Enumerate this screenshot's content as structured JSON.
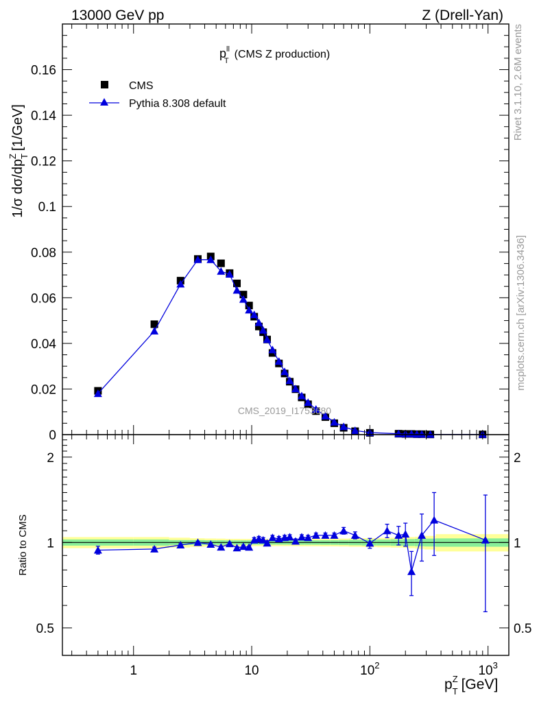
{
  "header": {
    "left": "13000 GeV pp",
    "right": "Z (Drell-Yan)"
  },
  "side_labels": {
    "rivet": "Rivet 3.1.10,  2.6M events",
    "mcplots": "mcplots.cern.ch [arXiv:1306.3436]"
  },
  "watermark": "CMS_2019_I1753680",
  "colors": {
    "data": "#000000",
    "mc": "#0000dd",
    "band_outer": "#ffff99",
    "band_inner": "#88ee99",
    "ref_line": "#00aa00"
  },
  "chart_data": [
    {
      "type": "scatter",
      "title_main": "p",
      "title_sup": "ll",
      "title_sub": "T",
      "title_rest": "(CMS Z production)",
      "ylabel": "1/σ dσ/dp T Z [1/GeV]",
      "ylabel_parts": {
        "a": "1/σ dσ/dp",
        "sup": "Z",
        "sub": "T",
        "b": "[1/GeV]"
      },
      "xscale": "log",
      "xlim": [
        0.25,
        1500
      ],
      "ylim": [
        0,
        0.18
      ],
      "yticks": [
        0.02,
        0.04,
        0.06,
        0.08,
        0.1,
        0.12,
        0.14,
        0.16
      ],
      "ytick_labels": [
        "0.02",
        "0.04",
        "0.06",
        "0.08",
        "0.1",
        "0.12",
        "0.14",
        "0.16"
      ],
      "legend_position": "top-left",
      "series": [
        {
          "name": "CMS",
          "marker": "square",
          "x": [
            0.5,
            1.5,
            2.5,
            3.5,
            4.5,
            5.5,
            6.5,
            7.5,
            8.5,
            9.5,
            10.5,
            11.5,
            12.5,
            13.5,
            15,
            17,
            19,
            21,
            23.5,
            26.5,
            30,
            35,
            42,
            50,
            60,
            75,
            100,
            175,
            200,
            225,
            250,
            275,
            325,
            900
          ],
          "y": [
            0.0192,
            0.0484,
            0.0675,
            0.077,
            0.0781,
            0.0751,
            0.0708,
            0.0663,
            0.0614,
            0.0566,
            0.0517,
            0.0474,
            0.0449,
            0.0417,
            0.0358,
            0.0312,
            0.0268,
            0.0232,
            0.0199,
            0.0163,
            0.0133,
            0.0103,
            0.0077,
            0.005,
            0.003,
            0.0015,
            0.0008,
            0.0004,
            0.0003,
            0.0003,
            0.0002,
            0.0002,
            0.0001,
            0.0001
          ]
        },
        {
          "name": "Pythia 8.308 default",
          "marker": "triangle",
          "x": [
            0.5,
            1.5,
            2.5,
            3.5,
            4.5,
            5.5,
            6.5,
            7.5,
            8.5,
            9.5,
            10.5,
            11.5,
            12.5,
            13.5,
            15,
            17,
            19,
            21,
            23.5,
            26.5,
            30,
            35,
            42,
            50,
            60,
            75,
            100,
            175,
            200,
            225,
            250,
            275,
            325,
            900
          ],
          "y": [
            0.018,
            0.0454,
            0.066,
            0.0767,
            0.0767,
            0.0716,
            0.0703,
            0.0633,
            0.0593,
            0.0546,
            0.0526,
            0.0491,
            0.0458,
            0.0417,
            0.0372,
            0.0321,
            0.0276,
            0.0237,
            0.0201,
            0.017,
            0.0141,
            0.0111,
            0.0082,
            0.0055,
            0.0035,
            0.0018,
            0.0009,
            0.0004,
            0.0003,
            0.0003,
            0.0002,
            0.0002,
            0.0001,
            0.0001
          ]
        }
      ]
    },
    {
      "type": "line",
      "ylabel": "Ratio to CMS",
      "xlabel_main": "p",
      "xlabel_sup": "Z",
      "xlabel_sub": "T",
      "xlabel_rest": "[GeV]",
      "xscale": "log",
      "yscale": "log",
      "xlim": [
        0.25,
        1500
      ],
      "ylim": [
        0.4,
        2.4
      ],
      "yticks": [
        0.5,
        1,
        2
      ],
      "ytick_labels": [
        "0.5",
        "1",
        "2"
      ],
      "xticks": [
        1,
        10,
        100,
        1000
      ],
      "xtick_labels": [
        {
          "base": "1",
          "exp": ""
        },
        {
          "base": "10",
          "exp": ""
        },
        {
          "base": "10",
          "exp": "2"
        },
        {
          "base": "10",
          "exp": "3"
        }
      ],
      "band_edges": [
        0.25,
        1,
        2,
        3,
        4,
        5,
        6,
        7,
        8,
        9,
        10,
        11,
        12,
        13,
        14,
        16,
        18,
        20,
        22,
        25,
        28,
        32,
        38,
        46,
        54,
        66,
        85,
        115,
        150,
        190,
        210,
        240,
        260,
        290,
        360,
        1500
      ],
      "band_inner_halfwidth": [
        0.025,
        0.025,
        0.02,
        0.02,
        0.018,
        0.018,
        0.017,
        0.017,
        0.017,
        0.017,
        0.017,
        0.017,
        0.017,
        0.017,
        0.017,
        0.017,
        0.017,
        0.017,
        0.017,
        0.018,
        0.018,
        0.018,
        0.019,
        0.019,
        0.02,
        0.022,
        0.024,
        0.024,
        0.026,
        0.028,
        0.028,
        0.03,
        0.03,
        0.032,
        0.034
      ],
      "band_outer_halfwidth": [
        0.045,
        0.045,
        0.04,
        0.035,
        0.033,
        0.032,
        0.03,
        0.03,
        0.029,
        0.029,
        0.029,
        0.029,
        0.029,
        0.029,
        0.029,
        0.029,
        0.029,
        0.029,
        0.029,
        0.03,
        0.03,
        0.03,
        0.031,
        0.031,
        0.032,
        0.034,
        0.036,
        0.038,
        0.04,
        0.042,
        0.045,
        0.048,
        0.05,
        0.055,
        0.07
      ],
      "series": [
        {
          "name": "Pythia 8.308 default",
          "x": [
            0.5,
            1.5,
            2.5,
            3.5,
            4.5,
            5.5,
            6.5,
            7.5,
            8.5,
            9.5,
            10.5,
            11.5,
            12.5,
            13.5,
            15,
            17,
            19,
            21,
            23.5,
            26.5,
            30,
            35,
            42,
            50,
            60,
            75,
            100,
            140,
            175,
            200,
            225,
            275,
            350,
            950
          ],
          "y": [
            0.94,
            0.948,
            0.98,
            1.0,
            0.985,
            0.963,
            0.99,
            0.957,
            0.968,
            0.962,
            1.02,
            1.03,
            1.02,
            0.995,
            1.04,
            1.03,
            1.04,
            1.045,
            1.01,
            1.045,
            1.04,
            1.06,
            1.06,
            1.06,
            1.1,
            1.06,
            0.994,
            1.1,
            1.06,
            1.07,
            0.79,
            1.06,
            1.2,
            1.02
          ],
          "yerr": [
            0.03,
            0.015,
            0.01,
            0.01,
            0.01,
            0.01,
            0.01,
            0.01,
            0.01,
            0.01,
            0.02,
            0.02,
            0.02,
            0.02,
            0.02,
            0.02,
            0.02,
            0.02,
            0.02,
            0.02,
            0.02,
            0.02,
            0.02,
            0.02,
            0.03,
            0.03,
            0.04,
            0.06,
            0.08,
            0.1,
            0.14,
            0.2,
            0.3,
            0.45
          ]
        }
      ]
    }
  ]
}
